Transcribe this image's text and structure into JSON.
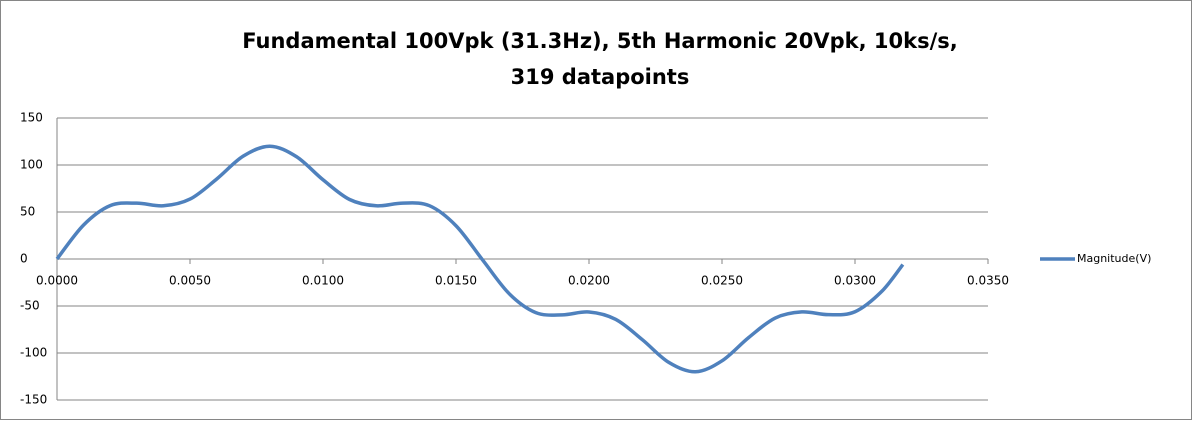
{
  "chart_data": {
    "type": "line",
    "title": [
      "Fundamental 100Vpk (31.3Hz), 5th Harmonic 20Vpk, 10ks/s,",
      "319 datapoints"
    ],
    "x": [
      0,
      0.001,
      0.002,
      0.003,
      0.004,
      0.005,
      0.006,
      0.007,
      0.008,
      0.009,
      0.01,
      0.011,
      0.012,
      0.013,
      0.014,
      0.015,
      0.016,
      0.017,
      0.018,
      0.019,
      0.02,
      0.021,
      0.022,
      0.023,
      0.024,
      0.025,
      0.026,
      0.027,
      0.028,
      0.029,
      0.03,
      0.031,
      0.0318
    ],
    "series": [
      {
        "name": "Magnitude(V)",
        "color": "#4f81bd",
        "values": [
          0,
          36.2,
          56.8,
          59.4,
          56.6,
          63.7,
          85.0,
          109.4,
          120.0,
          108.9,
          84.3,
          63.3,
          56.6,
          59.5,
          56.7,
          35.4,
          -1.0,
          -36.9,
          -57.0,
          -59.4,
          -56.4,
          -64.2,
          -85.7,
          -110.0,
          -120.0,
          -108.3,
          -83.6,
          -62.8,
          -56.3,
          -59.2,
          -56.1,
          -34.6,
          -5.9
        ]
      }
    ],
    "xlim": [
      0,
      0.035
    ],
    "xticks": [
      {
        "value": 0,
        "label": "0.0000"
      },
      {
        "value": 0.005,
        "label": "0.0050"
      },
      {
        "value": 0.01,
        "label": "0.0100"
      },
      {
        "value": 0.015,
        "label": "0.0150"
      },
      {
        "value": 0.02,
        "label": "0.0200"
      },
      {
        "value": 0.025,
        "label": "0.0250"
      },
      {
        "value": 0.03,
        "label": "0.0300"
      },
      {
        "value": 0.035,
        "label": "0.0350"
      }
    ],
    "ylim": [
      -150,
      150
    ],
    "yticks": [
      -150,
      -100,
      -50,
      0,
      50,
      100,
      150
    ],
    "grid": true,
    "legend": "right"
  }
}
